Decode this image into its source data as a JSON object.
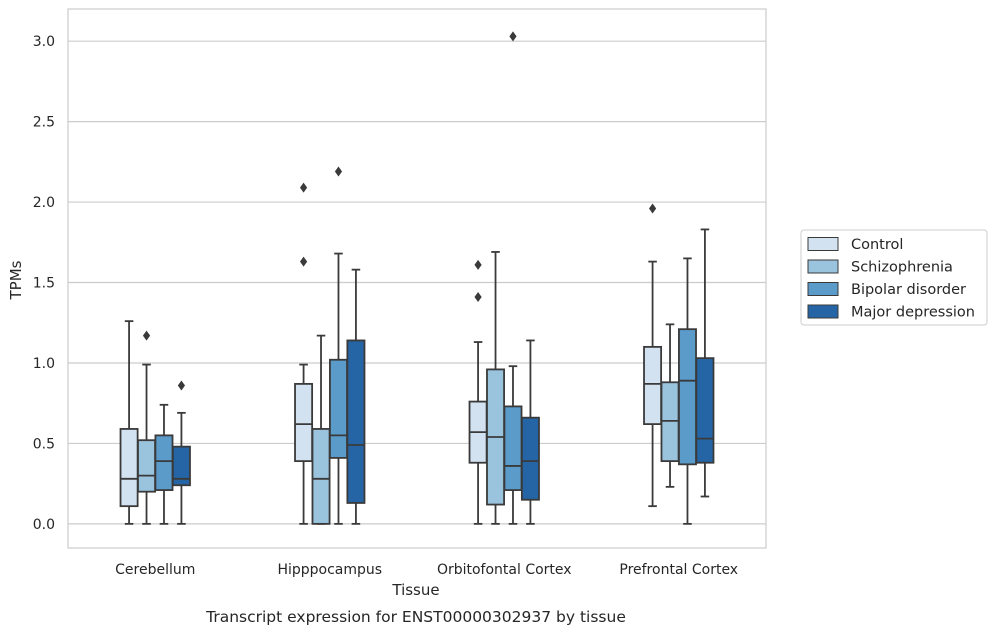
{
  "chart_data": {
    "type": "box",
    "caption": "Transcript expression for ENST00000302937 by tissue",
    "xlabel": "Tissue",
    "ylabel": "TPMs",
    "ylim": [
      -0.15,
      3.2
    ],
    "yticks": [
      0.0,
      0.5,
      1.0,
      1.5,
      2.0,
      2.5,
      3.0
    ],
    "ytick_labels": [
      "0.0",
      "0.5",
      "1.0",
      "1.5",
      "2.0",
      "2.5",
      "3.0"
    ],
    "grid": "horizontal",
    "legend_position": "right",
    "categories": [
      "Cerebellum",
      "Hipppocampus",
      "Orbitofontal Cortex",
      "Prefrontal Cortex"
    ],
    "series": [
      {
        "name": "Control",
        "color": "#d2e2f1",
        "boxes": [
          {
            "whislo": 0.0,
            "q1": 0.11,
            "median": 0.28,
            "q3": 0.59,
            "whishi": 1.26,
            "fliers": []
          },
          {
            "whislo": 0.0,
            "q1": 0.39,
            "median": 0.62,
            "q3": 0.87,
            "whishi": 0.99,
            "fliers": [
              1.63,
              2.09
            ]
          },
          {
            "whislo": 0.0,
            "q1": 0.38,
            "median": 0.57,
            "q3": 0.76,
            "whishi": 1.13,
            "fliers": [
              1.41,
              1.61
            ]
          },
          {
            "whislo": 0.11,
            "q1": 0.62,
            "median": 0.87,
            "q3": 1.1,
            "whishi": 1.63,
            "fliers": [
              1.96
            ]
          }
        ]
      },
      {
        "name": "Schizophrenia",
        "color": "#9ac3dd",
        "boxes": [
          {
            "whislo": 0.0,
            "q1": 0.2,
            "median": 0.3,
            "q3": 0.52,
            "whishi": 0.99,
            "fliers": [
              1.17
            ]
          },
          {
            "whislo": 0.0,
            "q1": 0.0,
            "median": 0.28,
            "q3": 0.59,
            "whishi": 1.17,
            "fliers": []
          },
          {
            "whislo": 0.0,
            "q1": 0.12,
            "median": 0.54,
            "q3": 0.96,
            "whishi": 1.69,
            "fliers": []
          },
          {
            "whislo": 0.23,
            "q1": 0.39,
            "median": 0.64,
            "q3": 0.88,
            "whishi": 1.24,
            "fliers": []
          }
        ]
      },
      {
        "name": "Bipolar disorder",
        "color": "#5b9bc9",
        "boxes": [
          {
            "whislo": 0.0,
            "q1": 0.21,
            "median": 0.39,
            "q3": 0.55,
            "whishi": 0.74,
            "fliers": []
          },
          {
            "whislo": 0.0,
            "q1": 0.41,
            "median": 0.55,
            "q3": 1.02,
            "whishi": 1.68,
            "fliers": [
              2.19
            ]
          },
          {
            "whislo": 0.0,
            "q1": 0.21,
            "median": 0.36,
            "q3": 0.73,
            "whishi": 0.98,
            "fliers": [
              3.03
            ]
          },
          {
            "whislo": 0.0,
            "q1": 0.37,
            "median": 0.89,
            "q3": 1.21,
            "whishi": 1.65,
            "fliers": []
          }
        ]
      },
      {
        "name": "Major depression",
        "color": "#2565a5",
        "boxes": [
          {
            "whislo": 0.0,
            "q1": 0.24,
            "median": 0.28,
            "q3": 0.48,
            "whishi": 0.69,
            "fliers": [
              0.86
            ]
          },
          {
            "whislo": 0.0,
            "q1": 0.13,
            "median": 0.49,
            "q3": 1.14,
            "whishi": 1.58,
            "fliers": []
          },
          {
            "whislo": 0.0,
            "q1": 0.15,
            "median": 0.39,
            "q3": 0.66,
            "whishi": 1.14,
            "fliers": []
          },
          {
            "whislo": 0.17,
            "q1": 0.38,
            "median": 0.53,
            "q3": 1.03,
            "whishi": 1.83,
            "fliers": []
          }
        ]
      }
    ]
  }
}
